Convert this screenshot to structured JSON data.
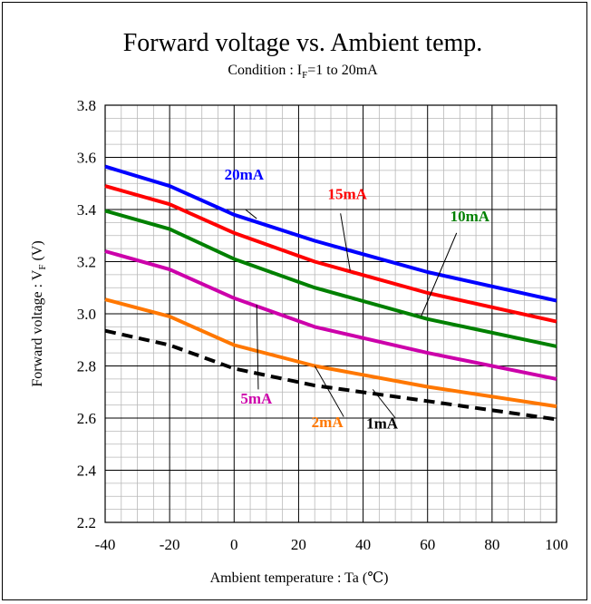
{
  "chart_data": {
    "type": "line",
    "title": "Forward voltage vs. Ambient temp.",
    "subtitle": {
      "prefix": "Condition : I",
      "subscript": "F",
      "suffix": "=1 to 20mA"
    },
    "xlabel": "Ambient temperature : Ta (℃)",
    "ylabel": "Forward voltage : V",
    "ylabel_subscript": "F",
    "ylabel_unit": " (V)",
    "xlim": [
      -40,
      100
    ],
    "ylim": [
      2.2,
      3.8
    ],
    "xticks": [
      -40,
      -20,
      0,
      20,
      40,
      60,
      80,
      100
    ],
    "xtick_labels": [
      "-40",
      "-20",
      "0",
      "20",
      "40",
      "60",
      "80",
      "100"
    ],
    "yticks": [
      2.2,
      2.4,
      2.6,
      2.8,
      3.0,
      3.2,
      3.4,
      3.6,
      3.8
    ],
    "ytick_labels": [
      "2.2",
      "2.4",
      "2.6",
      "2.8",
      "3.0",
      "3.2",
      "3.4",
      "3.6",
      "3.8"
    ],
    "minor_x_step": 5,
    "minor_y_step": 0.05,
    "grid": true,
    "series": [
      {
        "name": "20mA",
        "color": "#0000ff",
        "dash": "solid",
        "x": [
          -40,
          -20,
          0,
          25,
          60,
          100
        ],
        "y": [
          3.565,
          3.49,
          3.38,
          3.28,
          3.16,
          3.05
        ],
        "label_x": -3,
        "label_y": 3.515,
        "leader": [
          3.5,
          3.4,
          7,
          3.365
        ]
      },
      {
        "name": "15mA",
        "color": "#ff0000",
        "dash": "solid",
        "x": [
          -40,
          -20,
          0,
          25,
          60,
          100
        ],
        "y": [
          3.49,
          3.42,
          3.31,
          3.2,
          3.08,
          2.97
        ],
        "label_x": 29,
        "label_y": 3.44,
        "leader": [
          33,
          3.385,
          36,
          3.165
        ]
      },
      {
        "name": "10mA",
        "color": "#008000",
        "dash": "solid",
        "x": [
          -40,
          -20,
          0,
          25,
          60,
          100
        ],
        "y": [
          3.395,
          3.325,
          3.21,
          3.1,
          2.98,
          2.875
        ],
        "label_x": 67,
        "label_y": 3.355,
        "leader": [
          69,
          3.31,
          58,
          2.99
        ]
      },
      {
        "name": "5mA",
        "color": "#cc00aa",
        "dash": "solid",
        "x": [
          -40,
          -20,
          0,
          25,
          60,
          100
        ],
        "y": [
          3.24,
          3.17,
          3.06,
          2.95,
          2.85,
          2.75
        ],
        "label_x": 2,
        "label_y": 2.655,
        "leader": [
          7.5,
          2.71,
          7,
          3.035
        ]
      },
      {
        "name": "2mA",
        "color": "#ff7700",
        "dash": "solid",
        "x": [
          -40,
          -20,
          0,
          25,
          60,
          100
        ],
        "y": [
          3.055,
          2.99,
          2.88,
          2.8,
          2.72,
          2.645
        ],
        "label_x": 24,
        "label_y": 2.565,
        "leader": [
          34,
          2.605,
          25,
          2.8
        ]
      },
      {
        "name": "1mA",
        "color": "#000000",
        "dash": "dashed",
        "x": [
          -40,
          -20,
          0,
          25,
          60,
          100
        ],
        "y": [
          2.935,
          2.88,
          2.79,
          2.725,
          2.665,
          2.595
        ],
        "label_x": 41,
        "label_y": 2.56,
        "leader": [
          50,
          2.6,
          43,
          2.71
        ]
      }
    ]
  }
}
